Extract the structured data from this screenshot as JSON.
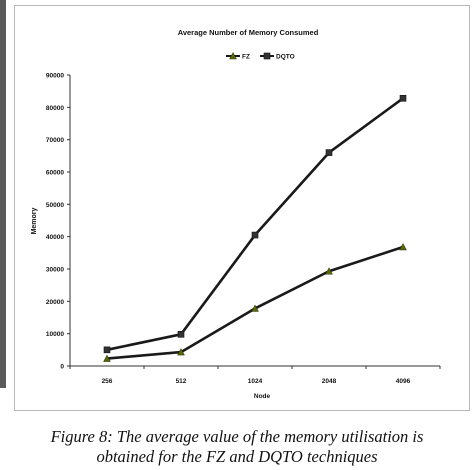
{
  "chart_data": {
    "type": "line",
    "title": "Average Number of Memory Consumed",
    "xlabel": "Node",
    "ylabel": "Memory",
    "categories": [
      "256",
      "512",
      "1024",
      "2048",
      "4096"
    ],
    "series": [
      {
        "name": "FZ",
        "values": [
          2300,
          4300,
          17800,
          29300,
          36800
        ],
        "color": "#1a1a1a",
        "marker": "triangle",
        "marker_color": "#556b00"
      },
      {
        "name": "DQTO",
        "values": [
          5000,
          9800,
          40500,
          66000,
          82800
        ],
        "color": "#1a1a1a",
        "marker": "square",
        "marker_color": "#333333"
      }
    ],
    "ylim": [
      0,
      90000
    ],
    "yticks": [
      "0",
      "10000",
      "20000",
      "30000",
      "40000",
      "50000",
      "60000",
      "70000",
      "80000",
      "90000"
    ],
    "legend_position": "top-center",
    "grid": false
  },
  "caption": {
    "line1": "Figure 8: The average value of the memory utilisation is",
    "line2": "obtained for the FZ and DQTO techniques"
  }
}
